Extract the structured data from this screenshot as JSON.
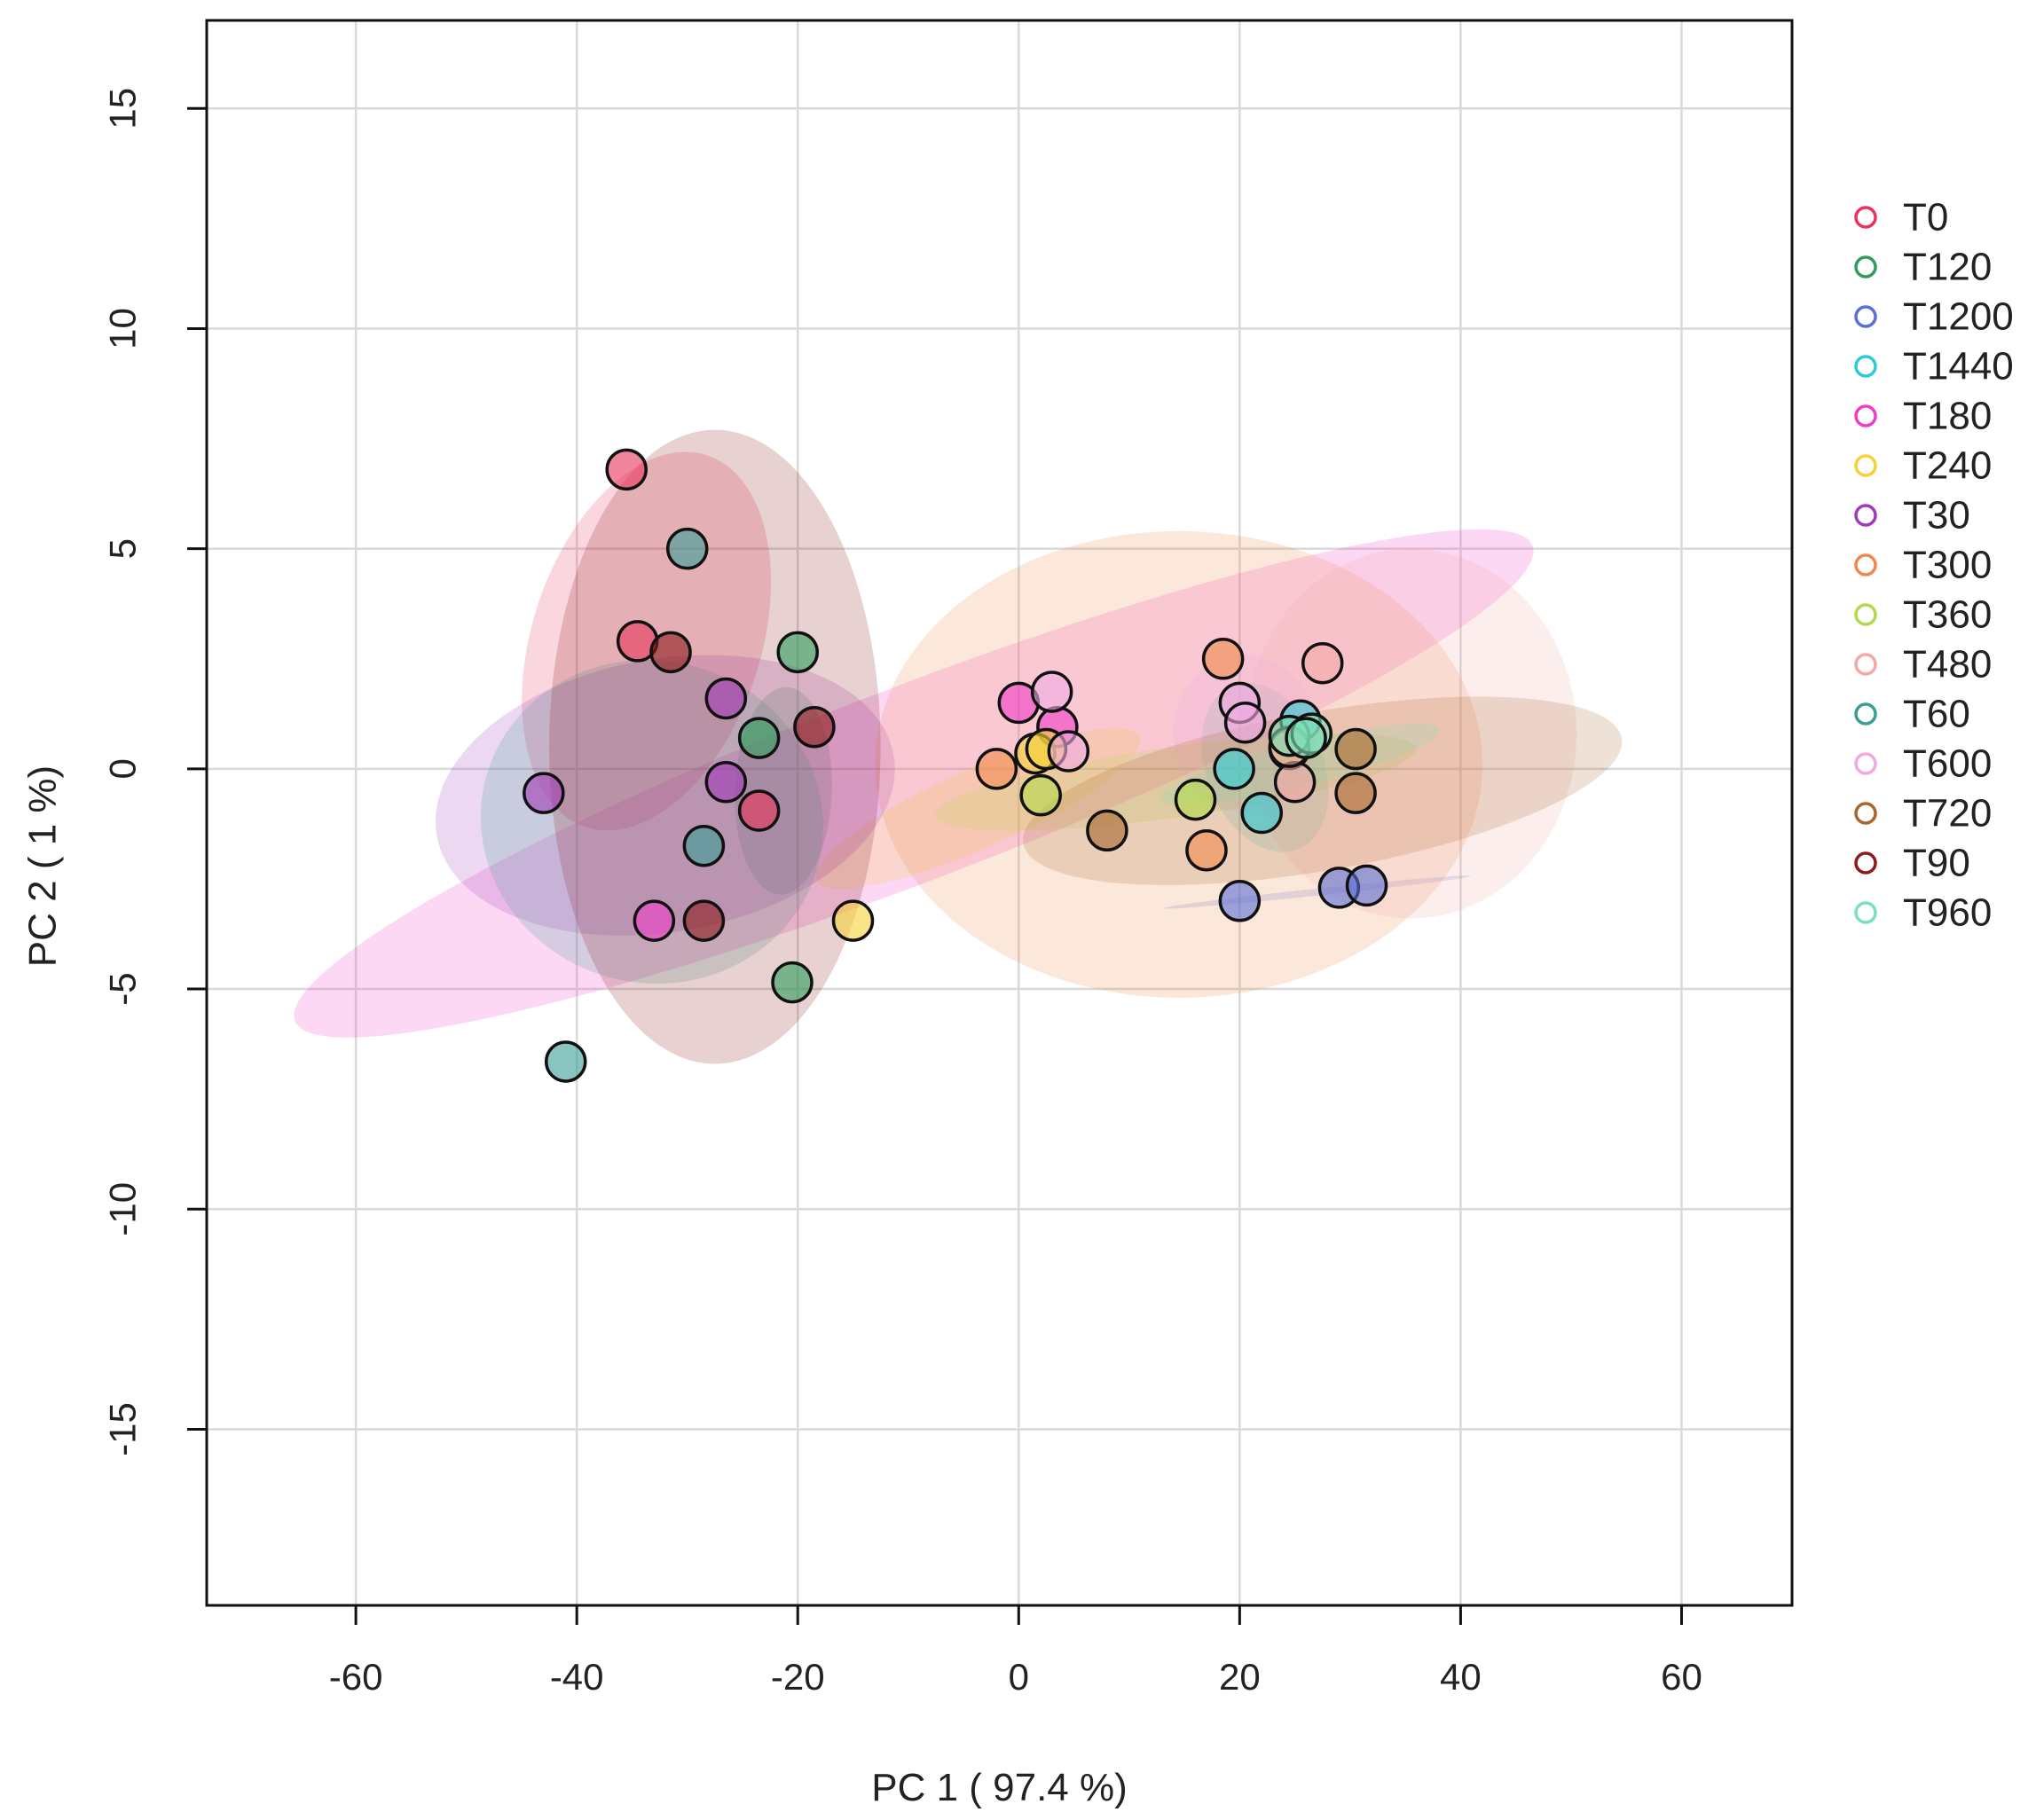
{
  "chart_data": {
    "type": "scatter",
    "title": "",
    "xlabel": "PC 1 ( 97.4 %)",
    "ylabel": "PC 2 ( 1 %)",
    "xlim": [
      -73.5,
      70
    ],
    "ylim": [
      -19,
      17
    ],
    "xticks": [
      "-60",
      "-40",
      "-20",
      "0",
      "20",
      "40",
      "60"
    ],
    "yticks": [
      "15",
      "10",
      "5",
      "0",
      "-5",
      "-10",
      "-15"
    ],
    "grid": true,
    "legend_position": "right",
    "series": [
      {
        "name": "T0",
        "color": "#E8345A",
        "points": [
          [
            -35.5,
            6.8
          ],
          [
            -34.5,
            2.9
          ],
          [
            -23.5,
            -0.95
          ]
        ],
        "ellipse": {
          "cx": -33.7,
          "cy": 2.9,
          "rx": 17.7,
          "ry": 2.6,
          "angle": 72
        }
      },
      {
        "name": "T120",
        "color": "#2E9E5B",
        "points": [
          [
            -20,
            2.65
          ],
          [
            -23.5,
            0.7
          ],
          [
            -20.5,
            -4.85
          ]
        ],
        "ellipse": {
          "cx": -21.3,
          "cy": -0.5,
          "rx": 9.4,
          "ry": 1.1,
          "angle": 88
        }
      },
      {
        "name": "T1200",
        "color": "#5B6FD6",
        "points": [
          [
            20,
            -3.0
          ],
          [
            29,
            -2.7
          ],
          [
            31.5,
            -2.65
          ]
        ],
        "ellipse": {
          "cx": 27,
          "cy": -2.8,
          "rx": 14,
          "ry": 0.08,
          "angle": 6
        }
      },
      {
        "name": "T1440",
        "color": "#2ECBD6",
        "points": [
          [
            25.5,
            1.1
          ],
          [
            19.5,
            0.0
          ],
          [
            22,
            -1.0
          ]
        ],
        "ellipse": {
          "cx": 22.3,
          "cy": 0.03,
          "rx": 5.3,
          "ry": 2.0,
          "angle": 22
        }
      },
      {
        "name": "T180",
        "color": "#F03CC8",
        "points": [
          [
            0,
            1.5
          ],
          [
            3.5,
            0.95
          ],
          [
            -33,
            -3.45
          ]
        ],
        "ellipse": {
          "cx": -9.5,
          "cy": -0.33,
          "rx": 60,
          "ry": 2.2,
          "angle": 21
        }
      },
      {
        "name": "T240",
        "color": "#F5D23A",
        "points": [
          [
            1.5,
            0.35
          ],
          [
            2.5,
            0.45
          ],
          [
            -15,
            -3.45
          ]
        ],
        "ellipse": {
          "cx": -3.7,
          "cy": -0.9,
          "rx": 16,
          "ry": 0.9,
          "angle": 24
        }
      },
      {
        "name": "T30",
        "color": "#A13AB8",
        "points": [
          [
            -43,
            -0.55
          ],
          [
            -26.5,
            1.6
          ],
          [
            -26.5,
            -0.3
          ]
        ],
        "ellipse": {
          "cx": -32,
          "cy": -0.6,
          "rx": 21,
          "ry": 3.1,
          "angle": 10
        }
      },
      {
        "name": "T300",
        "color": "#F08A4B",
        "points": [
          [
            -2,
            0.0
          ],
          [
            18.5,
            2.5
          ],
          [
            17,
            -1.85
          ]
        ],
        "ellipse": {
          "cx": 14.5,
          "cy": 0.1,
          "rx": 27.5,
          "ry": 5.3,
          "angle": 0
        }
      },
      {
        "name": "T360",
        "color": "#B5D94C",
        "points": [
          [
            2,
            -0.6
          ],
          [
            16,
            -0.7
          ],
          [
            24.5,
            0.45
          ]
        ],
        "ellipse": {
          "cx": 14.2,
          "cy": -0.3,
          "rx": 22,
          "ry": 0.8,
          "angle": 8
        }
      },
      {
        "name": "T480",
        "color": "#F4A9A8",
        "points": [
          [
            27.5,
            2.4
          ],
          [
            25,
            -0.3
          ],
          [
            24.5,
            0.5
          ]
        ],
        "ellipse": {
          "cx": 35.5,
          "cy": 0.8,
          "rx": 15,
          "ry": 4.2,
          "angle": 0
        }
      },
      {
        "name": "T60",
        "color": "#3A9E96",
        "points": [
          [
            -30,
            5.0
          ],
          [
            -28.5,
            -1.75
          ],
          [
            -41,
            -6.65
          ]
        ],
        "ellipse": {
          "cx": -33.2,
          "cy": -1.2,
          "rx": 14.6,
          "ry": 3.9,
          "angle": 76
        }
      },
      {
        "name": "T600",
        "color": "#EFAAE3",
        "points": [
          [
            3,
            1.75
          ],
          [
            4.5,
            0.4
          ],
          [
            20,
            1.5
          ],
          [
            20.5,
            1.05
          ]
        ],
        "ellipse": {
          "cx": 20.5,
          "cy": 0.8,
          "rx": 6.5,
          "ry": 1.8,
          "angle": 5
        }
      },
      {
        "name": "T720",
        "color": "#A8672E",
        "points": [
          [
            8,
            -1.4
          ],
          [
            30.5,
            0.45
          ],
          [
            30.5,
            -0.55
          ]
        ],
        "ellipse": {
          "cx": 27.5,
          "cy": -0.5,
          "rx": 27.5,
          "ry": 1.8,
          "angle": 10
        }
      },
      {
        "name": "T90",
        "color": "#8E1B1B",
        "points": [
          [
            -31.5,
            2.65
          ],
          [
            -28.5,
            -3.45
          ],
          [
            -18.5,
            0.95
          ]
        ],
        "ellipse": {
          "cx": -27.5,
          "cy": 0.5,
          "rx": 15,
          "ry": 7.2,
          "angle": 0
        }
      },
      {
        "name": "T960",
        "color": "#7EE0B8",
        "points": [
          [
            24.5,
            0.75
          ],
          [
            26.5,
            0.8
          ],
          [
            26,
            0.7
          ]
        ],
        "ellipse": {
          "cx": 25.5,
          "cy": 0.1,
          "rx": 13,
          "ry": 0.5,
          "angle": 14
        }
      }
    ]
  }
}
